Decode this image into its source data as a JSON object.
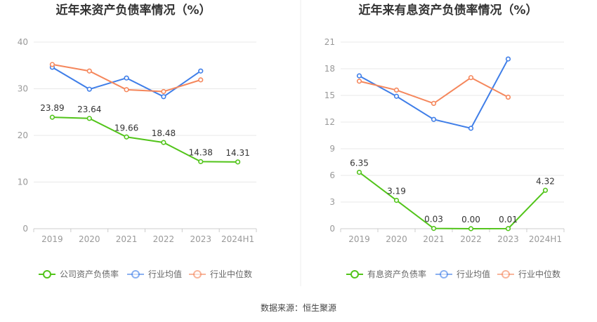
{
  "source_note": "数据来源：恒生聚源",
  "colors": {
    "company": "#52c41a",
    "industry_avg": "#3f7ee8",
    "industry_median": "#f5875c",
    "grid": "#e8e8e8",
    "axis": "#cccccc",
    "divider": "#eeeeee"
  },
  "chart_data": [
    {
      "type": "line",
      "title": "近年来资产负债率情况（%）",
      "categories": [
        "2019",
        "2020",
        "2021",
        "2022",
        "2023",
        "2024H1"
      ],
      "ylim": [
        0,
        40
      ],
      "yticks": [
        0,
        10,
        20,
        30,
        40
      ],
      "grid": true,
      "legend_position": "bottom",
      "series": [
        {
          "name": "公司资产负债率",
          "color_key": "company",
          "labeled": true,
          "values": [
            23.89,
            23.64,
            19.66,
            18.48,
            14.38,
            14.31
          ],
          "labels": [
            "23.89",
            "23.64",
            "19.66",
            "18.48",
            "14.38",
            "14.31"
          ]
        },
        {
          "name": "行业均值",
          "color_key": "industry_avg",
          "labeled": false,
          "values": [
            34.6,
            29.9,
            32.3,
            28.3,
            33.8,
            null
          ]
        },
        {
          "name": "行业中位数",
          "color_key": "industry_median",
          "labeled": false,
          "values": [
            35.2,
            33.8,
            29.8,
            29.4,
            31.9,
            null
          ]
        }
      ]
    },
    {
      "type": "line",
      "title": "近年来有息资产负债率情况（%）",
      "categories": [
        "2019",
        "2020",
        "2021",
        "2022",
        "2023",
        "2024H1"
      ],
      "ylim": [
        0,
        21
      ],
      "yticks": [
        0,
        3,
        6,
        9,
        12,
        15,
        18,
        21
      ],
      "grid": true,
      "legend_position": "bottom",
      "series": [
        {
          "name": "有息资产负债率",
          "color_key": "company",
          "labeled": true,
          "values": [
            6.35,
            3.19,
            0.03,
            0.0,
            0.01,
            4.32
          ],
          "labels": [
            "6.35",
            "3.19",
            "0.03",
            "0.00",
            "0.01",
            "4.32"
          ]
        },
        {
          "name": "行业均值",
          "color_key": "industry_avg",
          "labeled": false,
          "values": [
            17.2,
            14.9,
            12.3,
            11.3,
            19.1,
            null
          ]
        },
        {
          "name": "行业中位数",
          "color_key": "industry_median",
          "labeled": false,
          "values": [
            16.6,
            15.6,
            14.1,
            17.0,
            14.8,
            null
          ]
        }
      ]
    }
  ]
}
